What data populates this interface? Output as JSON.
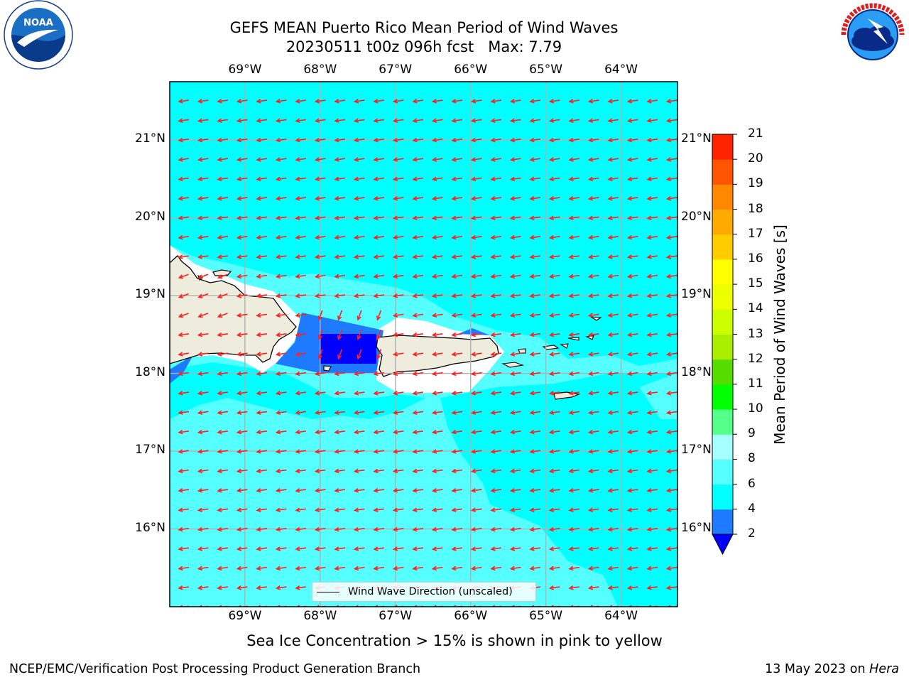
{
  "header": {
    "title_line1": "GEFS MEAN Puerto Rico Mean Period of Wind Waves",
    "title_line2": "20230511 t00z 096h fcst   Max: 7.79"
  },
  "logos": {
    "left": {
      "name": "NOAA",
      "ring_text": "NATIONAL OCEANIC AND ATMOSPHERIC ADMINISTRATION · U.S. DEPARTMENT OF COMMERCE"
    },
    "right": {
      "name": "NATIONAL WEATHER SERVICE"
    }
  },
  "map": {
    "lon_labels": [
      "69°W",
      "68°W",
      "67°W",
      "66°W",
      "65°W",
      "64°W"
    ],
    "lat_labels": [
      "21°N",
      "20°N",
      "19°N",
      "18°N",
      "17°N",
      "16°N"
    ],
    "lon_range": [
      -70.0,
      -63.25
    ],
    "lat_range": [
      15.0,
      21.75
    ],
    "fill_colors": {
      "land": "#eeecdd",
      "masked": "#ffffff",
      "period_4_6": "#00ffff",
      "period_6_8": "#55ffff"
    },
    "arrow_color": "#ff2020",
    "legend_label": "Wind Wave Direction (unscaled)"
  },
  "colorbar": {
    "title": "Mean Period of Wind Waves [s]",
    "tick_labels": [
      "2",
      "4",
      "6",
      "8",
      "9",
      "10",
      "11",
      "12",
      "13",
      "14",
      "15",
      "16",
      "17",
      "18",
      "19",
      "20",
      "21"
    ],
    "colors": [
      "#0000ff",
      "#1e7bff",
      "#00ffff",
      "#55ffff",
      "#a5ffff",
      "#55ff8a",
      "#00ff00",
      "#55dd00",
      "#aaee00",
      "#ccff00",
      "#eeff00",
      "#ffff00",
      "#ffcc00",
      "#ffaa00",
      "#ff8800",
      "#ff5500",
      "#ff2200",
      "#ff0000"
    ]
  },
  "footer": {
    "note": "Sea Ice Concentration > 15% is shown in pink to yellow",
    "left": "NCEP/EMC/Verification Post Processing Product Generation Branch",
    "right_date": "13 May 2023 on",
    "right_machine": "Hera"
  }
}
